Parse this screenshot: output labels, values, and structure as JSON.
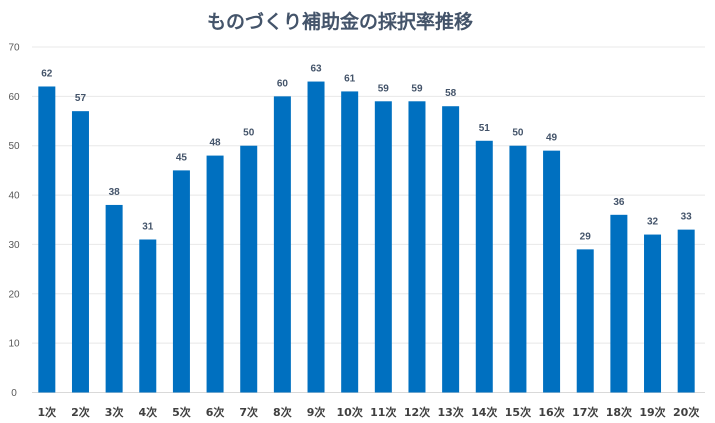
{
  "chart_data": {
    "type": "bar",
    "title": "ものづくり補助金の採択率推移",
    "xlabel": "",
    "ylabel": "",
    "ylim": [
      0,
      70
    ],
    "yticks": [
      0,
      10,
      20,
      30,
      40,
      50,
      60,
      70
    ],
    "grid": true,
    "bar_color": "#0070C0",
    "categories": [
      "1次",
      "2次",
      "3次",
      "4次",
      "5次",
      "6次",
      "7次",
      "8次",
      "9次",
      "10次",
      "11次",
      "12次",
      "13次",
      "14次",
      "15次",
      "16次",
      "17次",
      "18次",
      "19次",
      "20次"
    ],
    "values": [
      62,
      57,
      38,
      31,
      45,
      48,
      50,
      60,
      63,
      61,
      59,
      59,
      58,
      51,
      50,
      49,
      29,
      36,
      32,
      33
    ]
  }
}
